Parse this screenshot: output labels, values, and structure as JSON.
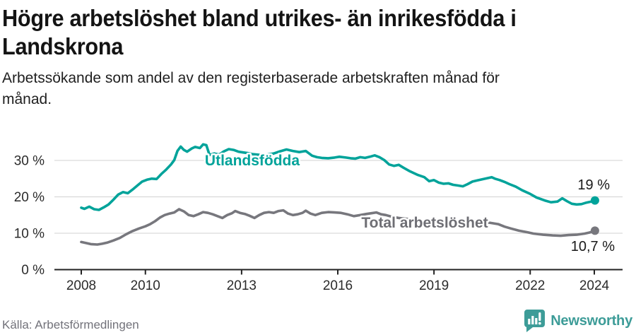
{
  "header": {
    "title_lines": [
      "Högre arbetslöshet bland utrikes- än inrikesfödda i",
      "Landskrona"
    ],
    "subtitle_lines": [
      "Arbetssökande som andel av den registerbaserade arbetskraften månad för",
      "månad."
    ]
  },
  "footer": {
    "source": "Källa: Arbetsförmedlingen",
    "brand": "Newsworthy"
  },
  "colors": {
    "foreign_born": "#00a39a",
    "total": "#77777d",
    "total_label": "#6e6e74",
    "grid": "#d9d9d9",
    "axis": "#222222",
    "tick_text": "#2b2b2b",
    "value_label": "#1a1a1a",
    "source_text": "#72727a",
    "brand_teal": "#3d9c98"
  },
  "chart_data": {
    "type": "line",
    "title": "Högre arbetslöshet bland utrikes- än inrikesfödda i Landskrona",
    "subtitle": "Arbetssökande som andel av den registerbaserade arbetskraften månad för månad.",
    "x_unit": "year (monthly series)",
    "y_unit": "percent of registered labour force",
    "xlim": [
      2007.15,
      2024.9
    ],
    "ylim": [
      0,
      36
    ],
    "grid": "horizontal",
    "legend_position": "inline-labels",
    "yticks": [
      {
        "value": 0,
        "label": "0 %"
      },
      {
        "value": 10,
        "label": "10 %"
      },
      {
        "value": 20,
        "label": "20 %"
      },
      {
        "value": 30,
        "label": "30 %"
      }
    ],
    "xticks": [
      {
        "value": 2008,
        "label": "2008"
      },
      {
        "value": 2010,
        "label": "2010"
      },
      {
        "value": 2013,
        "label": "2013"
      },
      {
        "value": 2016,
        "label": "2016"
      },
      {
        "value": 2019,
        "label": "2019"
      },
      {
        "value": 2022,
        "label": "2022"
      },
      {
        "value": 2024,
        "label": "2024"
      }
    ],
    "series": [
      {
        "id": "utlandsfodda",
        "name": "Utlandsfödda",
        "color": "#00a39a",
        "end_label": "19 %",
        "end_value": 19,
        "points": [
          [
            2008.0,
            17.0
          ],
          [
            2008.1,
            16.7
          ],
          [
            2008.25,
            17.3
          ],
          [
            2008.4,
            16.6
          ],
          [
            2008.55,
            16.4
          ],
          [
            2008.7,
            17.1
          ],
          [
            2008.85,
            17.9
          ],
          [
            2009.0,
            19.2
          ],
          [
            2009.15,
            20.6
          ],
          [
            2009.3,
            21.3
          ],
          [
            2009.45,
            21.0
          ],
          [
            2009.6,
            22.0
          ],
          [
            2009.75,
            23.1
          ],
          [
            2009.9,
            24.2
          ],
          [
            2010.05,
            24.7
          ],
          [
            2010.2,
            25.0
          ],
          [
            2010.35,
            24.9
          ],
          [
            2010.5,
            26.3
          ],
          [
            2010.65,
            27.5
          ],
          [
            2010.8,
            28.9
          ],
          [
            2010.9,
            30.1
          ],
          [
            2011.0,
            32.6
          ],
          [
            2011.1,
            33.8
          ],
          [
            2011.2,
            32.9
          ],
          [
            2011.3,
            32.4
          ],
          [
            2011.45,
            33.3
          ],
          [
            2011.55,
            33.7
          ],
          [
            2011.7,
            33.4
          ],
          [
            2011.8,
            34.4
          ],
          [
            2011.9,
            34.2
          ],
          [
            2012.0,
            31.5
          ],
          [
            2012.15,
            31.9
          ],
          [
            2012.3,
            31.6
          ],
          [
            2012.45,
            32.5
          ],
          [
            2012.6,
            33.1
          ],
          [
            2012.75,
            32.9
          ],
          [
            2012.9,
            32.4
          ],
          [
            2013.05,
            32.2
          ],
          [
            2013.2,
            32.0
          ],
          [
            2013.35,
            31.7
          ],
          [
            2013.5,
            31.6
          ],
          [
            2013.65,
            31.4
          ],
          [
            2013.8,
            31.6
          ],
          [
            2014.0,
            31.9
          ],
          [
            2014.2,
            32.5
          ],
          [
            2014.4,
            33.0
          ],
          [
            2014.6,
            32.6
          ],
          [
            2014.8,
            32.3
          ],
          [
            2015.0,
            32.6
          ],
          [
            2015.2,
            31.3
          ],
          [
            2015.35,
            30.9
          ],
          [
            2015.5,
            30.7
          ],
          [
            2015.7,
            30.6
          ],
          [
            2015.9,
            30.8
          ],
          [
            2016.05,
            31.0
          ],
          [
            2016.25,
            30.8
          ],
          [
            2016.4,
            30.6
          ],
          [
            2016.55,
            30.5
          ],
          [
            2016.7,
            30.9
          ],
          [
            2016.85,
            30.7
          ],
          [
            2017.0,
            31.0
          ],
          [
            2017.15,
            31.4
          ],
          [
            2017.3,
            30.9
          ],
          [
            2017.45,
            30.1
          ],
          [
            2017.6,
            28.9
          ],
          [
            2017.75,
            28.5
          ],
          [
            2017.9,
            28.8
          ],
          [
            2018.05,
            28.0
          ],
          [
            2018.25,
            27.0
          ],
          [
            2018.5,
            26.0
          ],
          [
            2018.7,
            25.4
          ],
          [
            2018.85,
            24.3
          ],
          [
            2019.0,
            24.6
          ],
          [
            2019.15,
            23.9
          ],
          [
            2019.3,
            23.6
          ],
          [
            2019.45,
            23.7
          ],
          [
            2019.6,
            23.3
          ],
          [
            2019.75,
            23.1
          ],
          [
            2019.9,
            22.9
          ],
          [
            2020.05,
            23.5
          ],
          [
            2020.2,
            24.2
          ],
          [
            2020.35,
            24.5
          ],
          [
            2020.5,
            24.8
          ],
          [
            2020.65,
            25.1
          ],
          [
            2020.8,
            25.4
          ],
          [
            2020.9,
            25.0
          ],
          [
            2021.05,
            24.6
          ],
          [
            2021.2,
            24.1
          ],
          [
            2021.35,
            23.5
          ],
          [
            2021.55,
            22.8
          ],
          [
            2021.75,
            21.8
          ],
          [
            2022.0,
            20.8
          ],
          [
            2022.2,
            19.8
          ],
          [
            2022.45,
            19.0
          ],
          [
            2022.65,
            18.5
          ],
          [
            2022.85,
            18.7
          ],
          [
            2023.0,
            19.6
          ],
          [
            2023.15,
            18.8
          ],
          [
            2023.3,
            18.1
          ],
          [
            2023.45,
            17.9
          ],
          [
            2023.6,
            18.0
          ],
          [
            2023.75,
            18.4
          ],
          [
            2023.9,
            18.7
          ],
          [
            2024.02,
            19.0
          ]
        ]
      },
      {
        "id": "total",
        "name": "Total arbetslöshet",
        "color": "#77777d",
        "end_label": "10,7 %",
        "end_value": 10.7,
        "points": [
          [
            2008.0,
            7.6
          ],
          [
            2008.15,
            7.3
          ],
          [
            2008.3,
            7.0
          ],
          [
            2008.5,
            6.9
          ],
          [
            2008.65,
            7.1
          ],
          [
            2008.8,
            7.4
          ],
          [
            2009.0,
            8.0
          ],
          [
            2009.2,
            8.7
          ],
          [
            2009.4,
            9.7
          ],
          [
            2009.6,
            10.6
          ],
          [
            2009.8,
            11.3
          ],
          [
            2010.0,
            11.9
          ],
          [
            2010.15,
            12.5
          ],
          [
            2010.3,
            13.3
          ],
          [
            2010.45,
            14.3
          ],
          [
            2010.6,
            15.0
          ],
          [
            2010.75,
            15.4
          ],
          [
            2010.9,
            15.7
          ],
          [
            2011.05,
            16.6
          ],
          [
            2011.2,
            16.0
          ],
          [
            2011.35,
            15.0
          ],
          [
            2011.5,
            14.7
          ],
          [
            2011.65,
            15.2
          ],
          [
            2011.8,
            15.8
          ],
          [
            2011.95,
            15.6
          ],
          [
            2012.1,
            15.2
          ],
          [
            2012.25,
            14.7
          ],
          [
            2012.4,
            14.2
          ],
          [
            2012.55,
            15.0
          ],
          [
            2012.7,
            15.5
          ],
          [
            2012.8,
            16.1
          ],
          [
            2012.95,
            15.6
          ],
          [
            2013.1,
            15.3
          ],
          [
            2013.25,
            14.8
          ],
          [
            2013.4,
            14.2
          ],
          [
            2013.55,
            15.0
          ],
          [
            2013.7,
            15.6
          ],
          [
            2013.85,
            15.8
          ],
          [
            2014.0,
            15.6
          ],
          [
            2014.15,
            16.1
          ],
          [
            2014.3,
            16.3
          ],
          [
            2014.45,
            15.4
          ],
          [
            2014.6,
            15.0
          ],
          [
            2014.75,
            15.2
          ],
          [
            2014.9,
            15.6
          ],
          [
            2015.0,
            16.2
          ],
          [
            2015.15,
            15.4
          ],
          [
            2015.3,
            15.0
          ],
          [
            2015.5,
            15.6
          ],
          [
            2015.7,
            15.8
          ],
          [
            2015.9,
            15.7
          ],
          [
            2016.1,
            15.6
          ],
          [
            2016.3,
            15.2
          ],
          [
            2016.5,
            14.7
          ],
          [
            2016.7,
            15.0
          ],
          [
            2016.9,
            15.3
          ],
          [
            2017.05,
            15.5
          ],
          [
            2017.2,
            15.7
          ],
          [
            2017.35,
            15.2
          ],
          [
            2017.5,
            15.0
          ],
          [
            2017.7,
            14.5
          ],
          [
            2017.9,
            14.2
          ],
          [
            2018.2,
            13.9
          ],
          [
            2018.5,
            13.6
          ],
          [
            2018.8,
            13.3
          ],
          [
            2019.1,
            13.1
          ],
          [
            2019.4,
            13.0
          ],
          [
            2019.7,
            12.9
          ],
          [
            2020.0,
            13.1
          ],
          [
            2020.25,
            13.5
          ],
          [
            2020.5,
            13.2
          ],
          [
            2020.8,
            12.8
          ],
          [
            2021.0,
            12.5
          ],
          [
            2021.2,
            11.8
          ],
          [
            2021.4,
            11.3
          ],
          [
            2021.65,
            10.7
          ],
          [
            2021.9,
            10.3
          ],
          [
            2022.1,
            9.9
          ],
          [
            2022.4,
            9.6
          ],
          [
            2022.7,
            9.4
          ],
          [
            2022.95,
            9.3
          ],
          [
            2023.2,
            9.5
          ],
          [
            2023.45,
            9.6
          ],
          [
            2023.7,
            9.9
          ],
          [
            2023.85,
            10.2
          ],
          [
            2024.02,
            10.7
          ]
        ]
      }
    ]
  }
}
